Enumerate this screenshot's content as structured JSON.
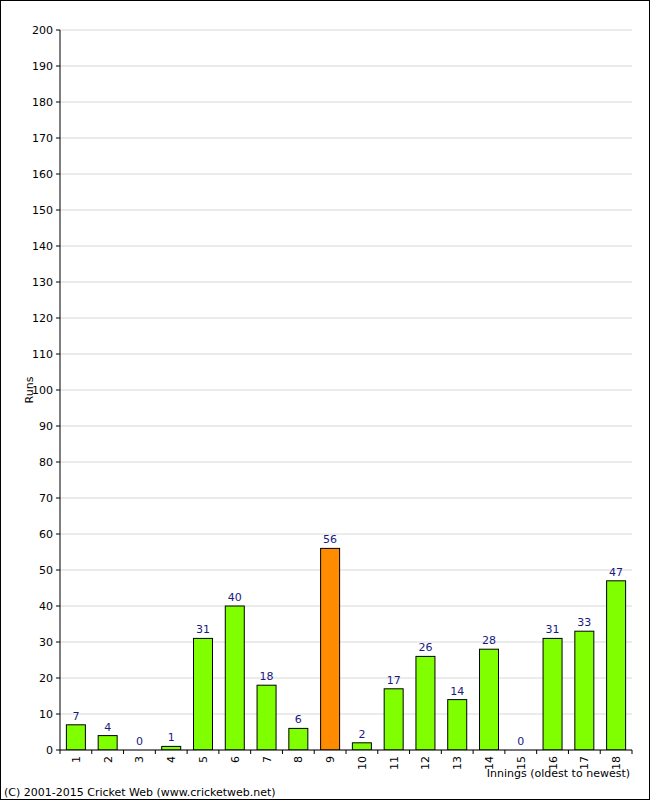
{
  "chart_data": {
    "type": "bar",
    "x_label": "Innings (oldest to newest)",
    "y_label": "Runs",
    "annotations": [
      "(C) 2001-2015 Cricket Web (www.cricketweb.net)"
    ],
    "categories": [
      "1",
      "2",
      "3",
      "4",
      "5",
      "6",
      "7",
      "8",
      "9",
      "10",
      "11",
      "12",
      "13",
      "14",
      "15",
      "16",
      "17",
      "18"
    ],
    "values": [
      7,
      4,
      0,
      1,
      31,
      40,
      18,
      6,
      56,
      2,
      17,
      26,
      14,
      28,
      0,
      31,
      33,
      47
    ],
    "colors": [
      "#80ff00",
      "#80ff00",
      "#80ff00",
      "#80ff00",
      "#80ff00",
      "#80ff00",
      "#80ff00",
      "#80ff00",
      "#ff8c00",
      "#80ff00",
      "#80ff00",
      "#80ff00",
      "#80ff00",
      "#80ff00",
      "#80ff00",
      "#80ff00",
      "#80ff00",
      "#80ff00"
    ],
    "ylim": [
      0,
      200
    ],
    "yticks": [
      0,
      10,
      20,
      30,
      40,
      50,
      60,
      70,
      80,
      90,
      100,
      110,
      120,
      130,
      140,
      150,
      160,
      170,
      180,
      190,
      200
    ],
    "grid": true,
    "data_labels": true
  }
}
